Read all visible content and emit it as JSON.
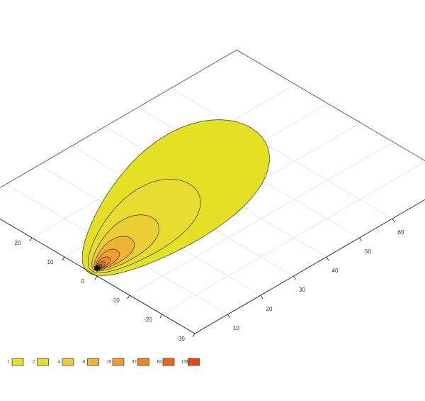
{
  "chart_data": {
    "type": "contour",
    "levels": [
      1,
      2,
      4,
      8,
      16,
      32,
      64,
      128
    ],
    "colors": [
      "#e4e125",
      "#e8dc30",
      "#ebcd34",
      "#efb530",
      "#f09e2e",
      "#ec8726",
      "#e6681c",
      "#df4a19"
    ],
    "xlim": [
      0,
      80
    ],
    "ylim": [
      -30,
      38
    ],
    "xticks": [
      10,
      20,
      30,
      40,
      50,
      60
    ],
    "yticks": [
      -30,
      -20,
      -10,
      0,
      10,
      20
    ],
    "grid": true
  }
}
